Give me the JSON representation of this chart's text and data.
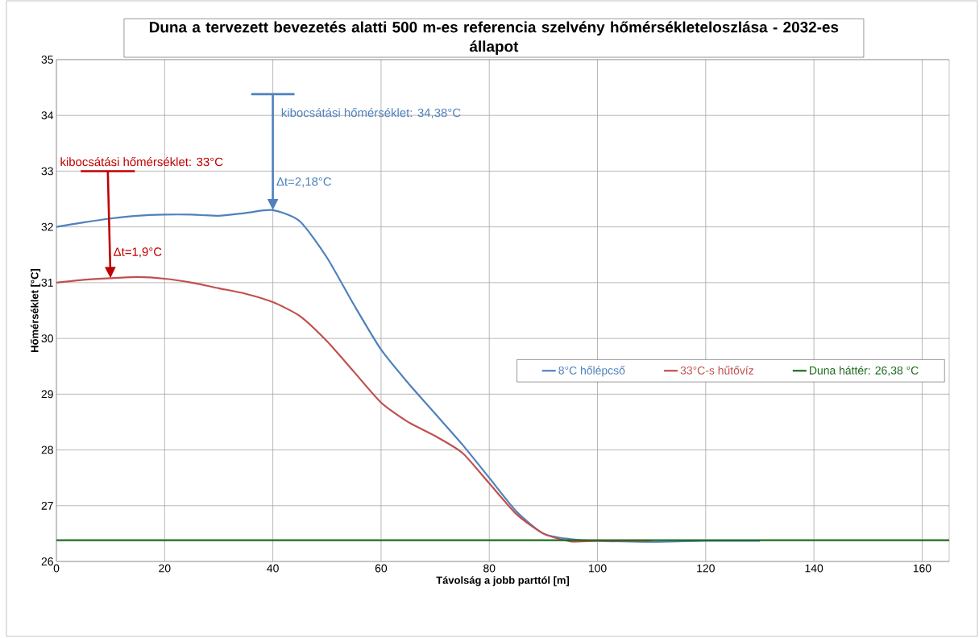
{
  "chart_data": {
    "type": "line",
    "title": "Duna a tervezett bevezetés alatti 500 m-es referencia szelvény hőmérsékleteloszlása - 2032-es állapot",
    "xlabel": "Távolság a jobb parttól [m]",
    "ylabel": "Hőmérséklet [°C]",
    "xlim": [
      0,
      165
    ],
    "xticks": [
      0,
      20,
      40,
      60,
      80,
      100,
      120,
      140,
      160
    ],
    "ylim": [
      26,
      35
    ],
    "yticks": [
      26,
      27,
      28,
      29,
      30,
      31,
      32,
      33,
      34,
      35
    ],
    "grid": true,
    "legend": "right",
    "series": [
      {
        "name": "8°C hőlépcső",
        "color": "#4f81bd",
        "x": [
          0,
          5,
          10,
          15,
          20,
          25,
          30,
          35,
          40,
          45,
          50,
          55,
          60,
          65,
          70,
          75,
          80,
          85,
          90,
          95,
          100,
          110,
          120,
          130
        ],
        "values": [
          32.0,
          32.08,
          32.15,
          32.2,
          32.22,
          32.22,
          32.2,
          32.25,
          32.3,
          32.1,
          31.45,
          30.6,
          29.8,
          29.2,
          28.65,
          28.1,
          27.5,
          26.9,
          26.5,
          26.4,
          26.37,
          26.35,
          26.37,
          26.37
        ]
      },
      {
        "name": "33°C-s hűtővíz",
        "color": "#c0504d",
        "x": [
          0,
          5,
          10,
          15,
          20,
          25,
          30,
          35,
          40,
          45,
          50,
          55,
          60,
          65,
          70,
          75,
          80,
          85,
          90,
          95,
          100,
          110
        ],
        "values": [
          31.0,
          31.05,
          31.08,
          31.1,
          31.07,
          31.0,
          30.9,
          30.8,
          30.65,
          30.4,
          29.95,
          29.4,
          28.85,
          28.5,
          28.25,
          27.95,
          27.4,
          26.85,
          26.5,
          26.36,
          26.37,
          26.37
        ]
      },
      {
        "name": "Duna háttér: 26,38 °C",
        "color": "#1e6b1e",
        "x": [
          0,
          165
        ],
        "values": [
          26.38,
          26.38
        ]
      },
      {
        "name": "kibocsátási hőmérséklet: 34,38°C",
        "color": "#4f81bd",
        "x": [
          36,
          44
        ],
        "values": [
          34.38,
          34.38
        ]
      },
      {
        "name": "kibocsátási hőmérséklet: 33°C",
        "color": "#c00000",
        "x": [
          4.5,
          14.5
        ],
        "values": [
          33,
          33
        ]
      }
    ],
    "annotations": [
      {
        "text": "Δt=2,18°C",
        "x": 40,
        "y": 32.3
      },
      {
        "text": "Δt=1,9°C",
        "x": 10,
        "y": 31.08
      }
    ]
  }
}
